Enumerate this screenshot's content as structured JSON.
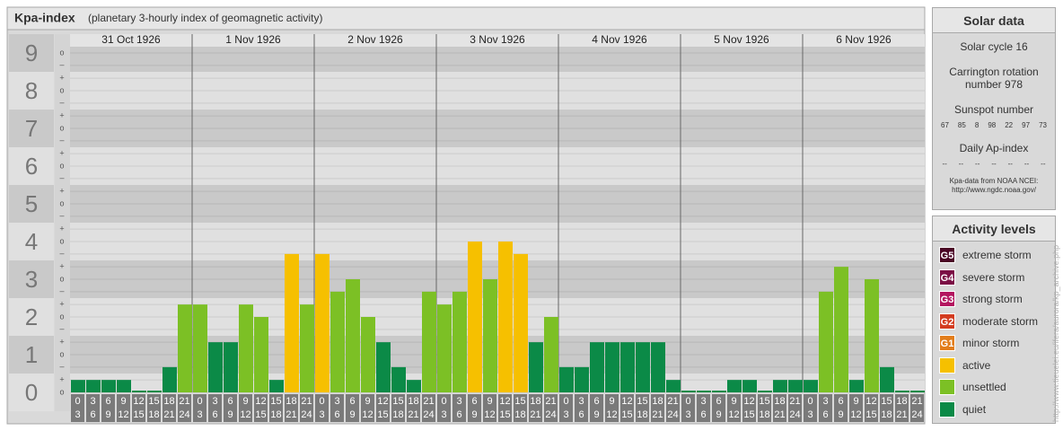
{
  "header": {
    "title": "Kpa-index",
    "subtitle": "(planetary 3-hourly index of geomagnetic activity)"
  },
  "chart_data": {
    "type": "bar",
    "days": [
      "31 Oct 1926",
      "1 Nov 1926",
      "2 Nov 1926",
      "3 Nov 1926",
      "4 Nov 1926",
      "5 Nov 1926",
      "6 Nov 1926"
    ],
    "hours": [
      [
        "0",
        "3"
      ],
      [
        "3",
        "6"
      ],
      [
        "6",
        "9"
      ],
      [
        "9",
        "12"
      ],
      [
        "12",
        "15"
      ],
      [
        "15",
        "18"
      ],
      [
        "18",
        "21"
      ],
      [
        "21",
        "24"
      ]
    ],
    "values": [
      0.33,
      0.33,
      0.33,
      0.33,
      0,
      0,
      0.67,
      2.33,
      2.33,
      1.33,
      1.33,
      2.33,
      2,
      0.33,
      3.67,
      2.33,
      3.67,
      2.67,
      3,
      2,
      1.33,
      0.67,
      0.33,
      2.67,
      2.33,
      2.67,
      4,
      3,
      4,
      3.67,
      1.33,
      2,
      0.67,
      0.67,
      1.33,
      1.33,
      1.33,
      1.33,
      1.33,
      0.33,
      0,
      0,
      0,
      0.33,
      0.33,
      0,
      0.33,
      0.33,
      0.33,
      2.67,
      3.33,
      0.33,
      3,
      0.67,
      0,
      0
    ],
    "colors": [
      "#0b8a47",
      "#0b8a47",
      "#0b8a47",
      "#0b8a47",
      "#0b8a47",
      "#0b8a47",
      "#0b8a47",
      "#7cc025",
      "#7cc025",
      "#0b8a47",
      "#0b8a47",
      "#7cc025",
      "#7cc025",
      "#0b8a47",
      "#f6c000",
      "#7cc025",
      "#f6c000",
      "#7cc025",
      "#7cc025",
      "#7cc025",
      "#0b8a47",
      "#0b8a47",
      "#0b8a47",
      "#7cc025",
      "#7cc025",
      "#7cc025",
      "#f6c000",
      "#7cc025",
      "#f6c000",
      "#f6c000",
      "#0b8a47",
      "#7cc025",
      "#0b8a47",
      "#0b8a47",
      "#0b8a47",
      "#0b8a47",
      "#0b8a47",
      "#0b8a47",
      "#0b8a47",
      "#0b8a47",
      "#0b8a47",
      "#0b8a47",
      "#0b8a47",
      "#0b8a47",
      "#0b8a47",
      "#0b8a47",
      "#0b8a47",
      "#0b8a47",
      "#0b8a47",
      "#7cc025",
      "#7cc025",
      "#0b8a47",
      "#7cc025",
      "#0b8a47",
      "#0b8a47",
      "#0b8a47"
    ],
    "ylim": [
      -0.5,
      9.5
    ],
    "yticks": [
      0,
      1,
      2,
      3,
      4,
      5,
      6,
      7,
      8,
      9
    ],
    "yminor": [
      {
        "value": 0,
        "label": "o"
      },
      {
        "value": 0.33,
        "label": "+"
      },
      {
        "value": 0.67,
        "label": "–"
      },
      {
        "value": 1,
        "label": "o"
      },
      {
        "value": 1.33,
        "label": "+"
      },
      {
        "value": 1.67,
        "label": "–"
      },
      {
        "value": 2,
        "label": "o"
      },
      {
        "value": 2.33,
        "label": "+"
      },
      {
        "value": 2.67,
        "label": "–"
      },
      {
        "value": 3,
        "label": "o"
      },
      {
        "value": 3.33,
        "label": "+"
      },
      {
        "value": 3.67,
        "label": "–"
      },
      {
        "value": 4,
        "label": "o"
      },
      {
        "value": 4.33,
        "label": "+"
      },
      {
        "value": 4.67,
        "label": "–"
      },
      {
        "value": 5,
        "label": "o"
      },
      {
        "value": 5.33,
        "label": "+"
      },
      {
        "value": 5.67,
        "label": "–"
      },
      {
        "value": 6,
        "label": "o"
      },
      {
        "value": 6.33,
        "label": "+"
      },
      {
        "value": 6.67,
        "label": "–"
      },
      {
        "value": 7,
        "label": "o"
      },
      {
        "value": 7.33,
        "label": "+"
      },
      {
        "value": 7.67,
        "label": "–"
      },
      {
        "value": 8,
        "label": "o"
      },
      {
        "value": 8.33,
        "label": "+"
      },
      {
        "value": 8.67,
        "label": "–"
      },
      {
        "value": 9,
        "label": "o"
      }
    ]
  },
  "solar_data": {
    "title": "Solar data",
    "cycle": "Solar cycle 16",
    "carrington": "Carrington rotation number 978",
    "sunspot_title": "Sunspot number",
    "sunspots": [
      67,
      85,
      8,
      98,
      22,
      97,
      73
    ],
    "ap_title": "Daily Ap-index",
    "ap": [
      "--",
      "--",
      "--",
      "--",
      "--",
      "--",
      "--"
    ],
    "source": "Kpa-data from NOAA NCEI:",
    "source_url": "http://www.ngdc.noaa.gov/"
  },
  "activity": {
    "title": "Activity levels",
    "levels": [
      {
        "code": "G5",
        "label": "extreme storm",
        "color": "#4a0424"
      },
      {
        "code": "G4",
        "label": "severe storm",
        "color": "#7b0f45"
      },
      {
        "code": "G3",
        "label": "strong storm",
        "color": "#b3155f"
      },
      {
        "code": "G2",
        "label": "moderate storm",
        "color": "#d33c20"
      },
      {
        "code": "G1",
        "label": "minor storm",
        "color": "#e27d1b"
      },
      {
        "label": "active",
        "color": "#f6c000"
      },
      {
        "label": "unsettled",
        "color": "#7cc025"
      },
      {
        "label": "quiet",
        "color": "#0b8a47"
      }
    ]
  },
  "credit": "http://www.tieuelei.eu/ifera/aurora/kp_archive.php"
}
